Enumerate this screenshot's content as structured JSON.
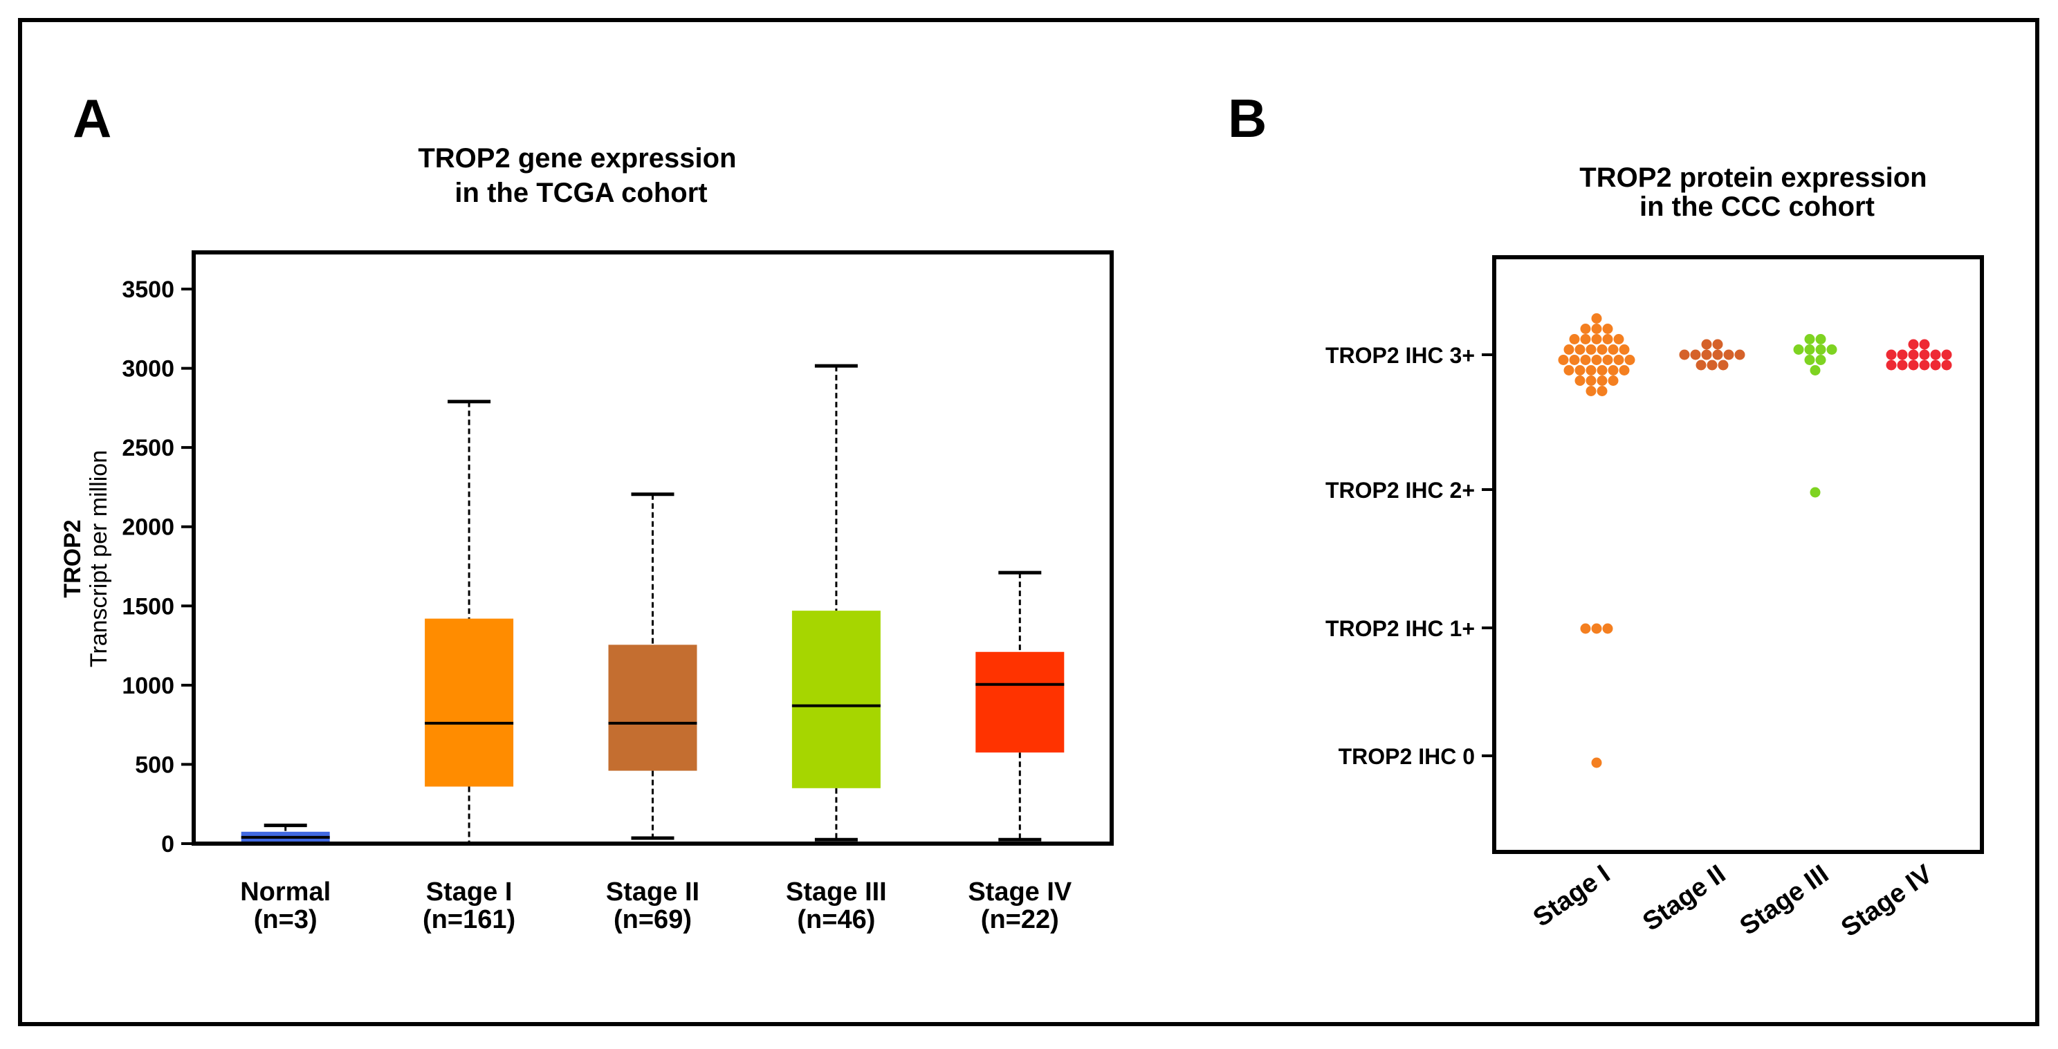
{
  "panels": {
    "a_label": "A",
    "b_label": "B"
  },
  "chart_data": [
    {
      "type": "box",
      "title": "TROP2 gene expression\nin the TCGA cohort",
      "ylabel_line1": "TROP2",
      "ylabel_line2": "Transcript per million",
      "ylim": [
        0,
        3700
      ],
      "yticks": [
        0,
        500,
        1000,
        1500,
        2000,
        2500,
        3000,
        3500
      ],
      "grid": false,
      "categories": [
        {
          "name": "Normal",
          "n": "(n=3)",
          "color": "#4169e1",
          "min": 0,
          "q1": 0,
          "median": 40,
          "q3": 75,
          "max": 115
        },
        {
          "name": "Stage I",
          "n": "(n=161)",
          "color": "#ff8c00",
          "min": 5,
          "q1": 360,
          "median": 760,
          "q3": 1420,
          "max": 2790
        },
        {
          "name": "Stage II",
          "n": "(n=69)",
          "color": "#c46e30",
          "min": 35,
          "q1": 460,
          "median": 760,
          "q3": 1255,
          "max": 2205
        },
        {
          "name": "Stage III",
          "n": "(n=46)",
          "color": "#a6d600",
          "min": 25,
          "q1": 350,
          "median": 870,
          "q3": 1470,
          "max": 3015
        },
        {
          "name": "Stage IV",
          "n": "(n=22)",
          "color": "#ff3300",
          "min": 25,
          "q1": 575,
          "median": 1005,
          "q3": 1210,
          "max": 1710
        }
      ]
    },
    {
      "type": "scatter",
      "title": "TROP2 protein expression\nin the CCC cohort",
      "categories": [
        "Stage I",
        "Stage II",
        "Stage III",
        "Stage IV"
      ],
      "levels": [
        "TROP2 IHC 0",
        "TROP2 IHC 1+",
        "TROP2 IHC 2+",
        "TROP2 IHC 3+"
      ],
      "series": [
        {
          "category": "Stage I",
          "color": "#f47f20",
          "counts": {
            "TROP2 IHC 0": 1,
            "TROP2 IHC 1+": 3,
            "TROP2 IHC 2+": 0,
            "TROP2 IHC 3+": 34
          }
        },
        {
          "category": "Stage II",
          "color": "#d5622a",
          "counts": {
            "TROP2 IHC 0": 0,
            "TROP2 IHC 1+": 0,
            "TROP2 IHC 2+": 0,
            "TROP2 IHC 3+": 11
          }
        },
        {
          "category": "Stage III",
          "color": "#7ed321",
          "counts": {
            "TROP2 IHC 0": 0,
            "TROP2 IHC 1+": 0,
            "TROP2 IHC 2+": 1,
            "TROP2 IHC 3+": 9
          }
        },
        {
          "category": "Stage IV",
          "color": "#ee2a34",
          "counts": {
            "TROP2 IHC 0": 0,
            "TROP2 IHC 1+": 0,
            "TROP2 IHC 2+": 0,
            "TROP2 IHC 3+": 14
          }
        }
      ]
    }
  ]
}
